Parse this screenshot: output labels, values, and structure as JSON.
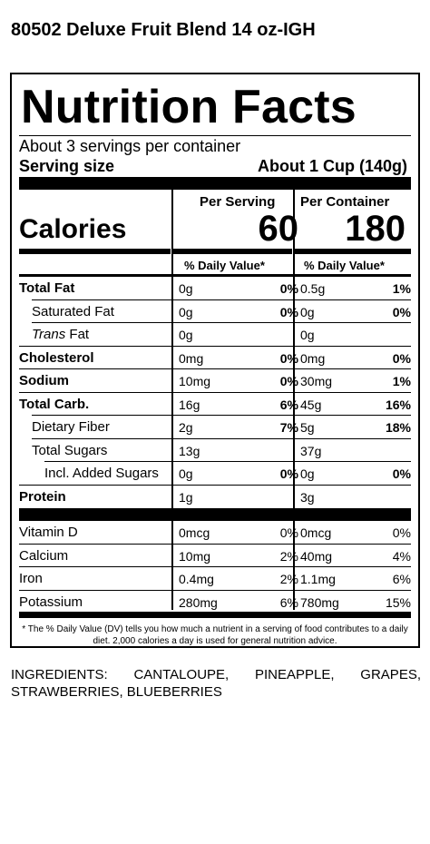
{
  "product_title": "80502 Deluxe Fruit Blend 14 oz-IGH",
  "label": {
    "title": "Nutrition Facts",
    "servings_per_container": "About 3 servings per container",
    "serving_size_label": "Serving size",
    "serving_size_value": "About 1 Cup (140g)",
    "calories_label": "Calories",
    "per_serving_header": "Per Serving",
    "per_container_header": "Per Container",
    "calories_per_serving": "60",
    "calories_per_container": "180",
    "dv_header_serving": "% Daily Value*",
    "dv_header_container": "% Daily Value*",
    "nutrients": [
      {
        "name": "Total Fat",
        "serving_amount": "0g",
        "serving_dv": "0%",
        "container_amount": "0.5g",
        "container_dv": "1%"
      },
      {
        "name": "Saturated Fat",
        "serving_amount": "0g",
        "serving_dv": "0%",
        "container_amount": "0g",
        "container_dv": "0%"
      },
      {
        "name_italic": "Trans",
        "name_rest": " Fat",
        "serving_amount": "0g",
        "serving_dv": "",
        "container_amount": "0g",
        "container_dv": ""
      },
      {
        "name": "Cholesterol",
        "serving_amount": "0mg",
        "serving_dv": "0%",
        "container_amount": "0mg",
        "container_dv": "0%"
      },
      {
        "name": "Sodium",
        "serving_amount": "10mg",
        "serving_dv": "0%",
        "container_amount": "30mg",
        "container_dv": "1%"
      },
      {
        "name": "Total Carb.",
        "serving_amount": "16g",
        "serving_dv": "6%",
        "container_amount": "45g",
        "container_dv": "16%"
      },
      {
        "name": "Dietary Fiber",
        "serving_amount": "2g",
        "serving_dv": "7%",
        "container_amount": "5g",
        "container_dv": "18%"
      },
      {
        "name": "Total Sugars",
        "serving_amount": "13g",
        "serving_dv": "",
        "container_amount": "37g",
        "container_dv": ""
      },
      {
        "name": "Incl. Added Sugars",
        "serving_amount": "0g",
        "serving_dv": "0%",
        "container_amount": "0g",
        "container_dv": "0%"
      },
      {
        "name": "Protein",
        "serving_amount": "1g",
        "serving_dv": "",
        "container_amount": "3g",
        "container_dv": ""
      }
    ],
    "vitamins": [
      {
        "name": "Vitamin D",
        "serving_amount": "0mcg",
        "serving_dv": "0%",
        "container_amount": "0mcg",
        "container_dv": "0%"
      },
      {
        "name": "Calcium",
        "serving_amount": "10mg",
        "serving_dv": "2%",
        "container_amount": "40mg",
        "container_dv": "4%"
      },
      {
        "name": "Iron",
        "serving_amount": "0.4mg",
        "serving_dv": "2%",
        "container_amount": "1.1mg",
        "container_dv": "6%"
      },
      {
        "name": "Potassium",
        "serving_amount": "280mg",
        "serving_dv": "6%",
        "container_amount": "780mg",
        "container_dv": "15%"
      }
    ],
    "footnote": "* The % Daily Value (DV) tells you how much a nutrient in a serving of food contributes to a daily diet. 2,000 calories a day is used for general nutrition advice."
  },
  "ingredients": "INGREDIENTS: CANTALOUPE, PINEAPPLE, GRAPES, STRAWBERRIES, BLUEBERRIES"
}
